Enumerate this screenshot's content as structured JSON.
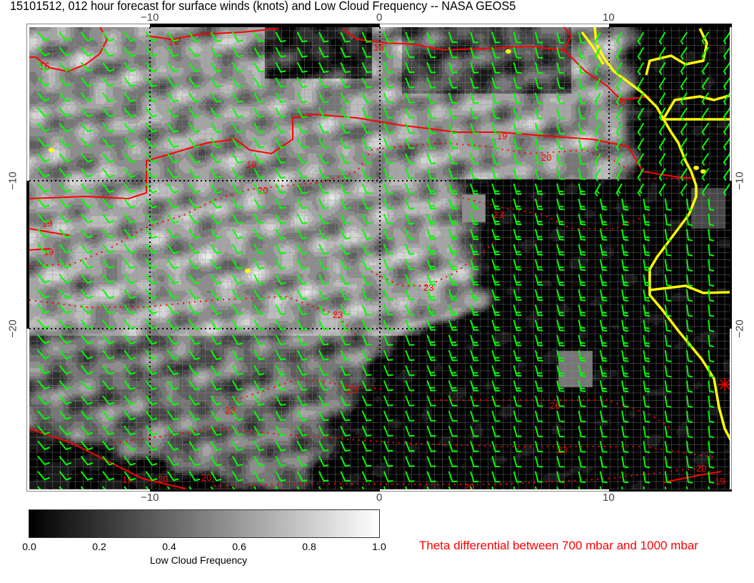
{
  "title": "15101512, 012 hour forecast for surface winds (knots) and Low Cloud Frequency -- NASA GEOS5",
  "x_ticks": [
    "−10",
    "0",
    "10"
  ],
  "y_ticks": [
    "−10",
    "−20"
  ],
  "colorbar": {
    "label": "Low Cloud Frequency",
    "ticks": [
      "0.0",
      "0.2",
      "0.4",
      "0.6",
      "0.8",
      "1.0"
    ],
    "range": [
      0.0,
      1.0
    ],
    "colors": [
      "#000000",
      "#ffffff"
    ]
  },
  "contour_legend": "Theta differential between 700 mbar and 1000 mbar",
  "contour_labels": [
    "16",
    "16",
    "16",
    "16",
    "19",
    "19",
    "19",
    "19",
    "20",
    "20",
    "23",
    "23",
    "23",
    "23",
    "23",
    "26",
    "23",
    "19",
    "20",
    "20",
    "20",
    "20",
    "19"
  ],
  "colors": {
    "wind_barbs": "#00ff00",
    "theta_contours": "#ff0000",
    "coastline": "#ffff00"
  },
  "icons": [
    "wind-barb",
    "asterisk-marker"
  ]
}
